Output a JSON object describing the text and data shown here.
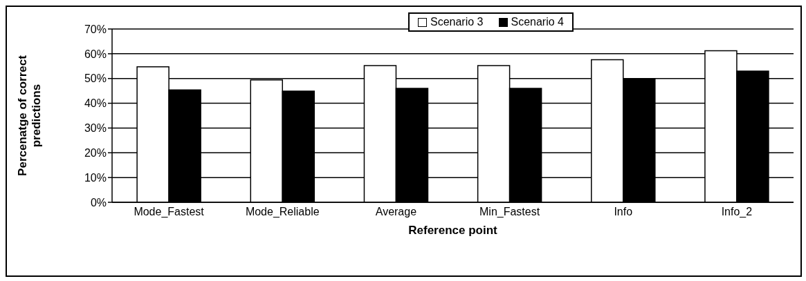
{
  "chart_data": {
    "type": "bar",
    "xlabel": "Reference point",
    "ylabel": "Percenatge of correct predictions",
    "categories": [
      "Mode_Fastest",
      "Mode_Reliable",
      "Average",
      "Min_Fastest",
      "Info",
      "Info_2"
    ],
    "series": [
      {
        "name": "Scenario 3",
        "color": "#ffffff",
        "values": [
          54.7,
          49.4,
          55.2,
          55.2,
          57.6,
          61.2
        ]
      },
      {
        "name": "Scenario 4",
        "color": "#000000",
        "values": [
          45.4,
          44.9,
          46.0,
          46.0,
          49.8,
          53.0
        ]
      }
    ],
    "ylim": [
      0,
      70
    ],
    "yticks": [
      {
        "value": 0,
        "label": "0%"
      },
      {
        "value": 10,
        "label": "10%"
      },
      {
        "value": 20,
        "label": "20%"
      },
      {
        "value": 30,
        "label": "30%"
      },
      {
        "value": 40,
        "label": "40%"
      },
      {
        "value": 50,
        "label": "50%"
      },
      {
        "value": 60,
        "label": "60%"
      },
      {
        "value": 70,
        "label": "70%"
      }
    ],
    "grid": "y",
    "legend": "top right"
  }
}
